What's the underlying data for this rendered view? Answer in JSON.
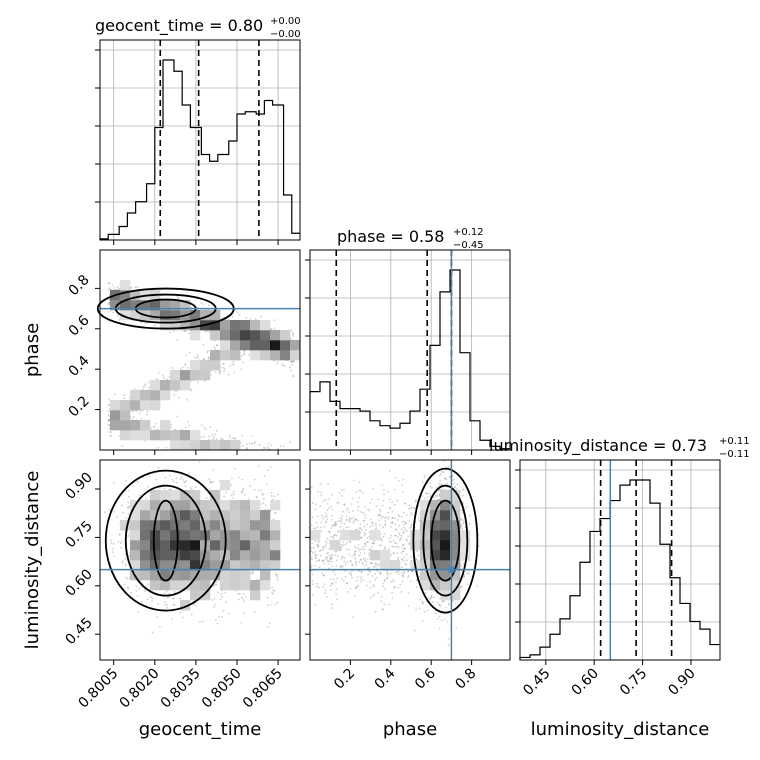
{
  "chart_data": {
    "type": "corner",
    "parameters": [
      "geocent_time",
      "phase",
      "luminosity_distance"
    ],
    "titles": {
      "geocent_time": {
        "name": "geocent_time",
        "value": "0.80",
        "plus": "+0.00",
        "minus": "−0.00"
      },
      "phase": {
        "name": "phase",
        "value": "0.58",
        "plus": "+0.12",
        "minus": "−0.45"
      },
      "luminosity_distance": {
        "name": "luminosity_distance",
        "value": "0.73",
        "plus": "+0.11",
        "minus": "−0.11"
      }
    },
    "axes": {
      "geocent_time": {
        "label": "geocent_time",
        "range": [
          0.8,
          0.8073
        ],
        "ticks": [
          0.8005,
          0.802,
          0.8035,
          0.805,
          0.8065
        ],
        "tick_labels": [
          "0.8005",
          "0.8020",
          "0.8035",
          "0.8050",
          "0.8065"
        ]
      },
      "phase": {
        "label": "phase",
        "range": [
          0.0,
          0.99
        ],
        "ticks": [
          0.2,
          0.4,
          0.6,
          0.8
        ],
        "tick_labels": [
          "0.2",
          "0.4",
          "0.6",
          "0.8"
        ]
      },
      "luminosity_distance": {
        "label": "luminosity_distance",
        "range": [
          0.37,
          0.99
        ],
        "ticks": [
          0.45,
          0.6,
          0.75,
          0.9
        ],
        "tick_labels": [
          "0.45",
          "0.60",
          "0.75",
          "0.90"
        ]
      }
    },
    "truths": {
      "geocent_time": null,
      "phase": 0.7,
      "luminosity_distance": 0.65
    },
    "quantiles": {
      "geocent_time": [
        0.8022,
        0.8036,
        0.8058
      ],
      "phase": [
        0.13,
        0.58,
        0.7
      ],
      "luminosity_distance": [
        0.62,
        0.73,
        0.84
      ]
    },
    "histograms": {
      "geocent_time": {
        "edges": [
          0.8,
          0.8003,
          0.8007,
          0.801,
          0.8013,
          0.8017,
          0.802,
          0.8023,
          0.8027,
          0.803,
          0.8033,
          0.8037,
          0.804,
          0.8043,
          0.8047,
          0.805,
          0.8053,
          0.8057,
          0.806,
          0.8063,
          0.8067,
          0.807,
          0.8073
        ],
        "counts": [
          0.005,
          0.025,
          0.06,
          0.12,
          0.17,
          0.25,
          0.5,
          0.8,
          0.75,
          0.6,
          0.5,
          0.38,
          0.35,
          0.38,
          0.44,
          0.56,
          0.57,
          0.56,
          0.62,
          0.6,
          0.2,
          0.03
        ]
      },
      "phase": {
        "edges": [
          0.0,
          0.0495,
          0.099,
          0.1485,
          0.198,
          0.2475,
          0.297,
          0.3465,
          0.396,
          0.4455,
          0.495,
          0.5445,
          0.594,
          0.6435,
          0.693,
          0.7425,
          0.792,
          0.8415,
          0.891,
          0.9405,
          0.99
        ],
        "counts": [
          0.24,
          0.28,
          0.2,
          0.17,
          0.17,
          0.16,
          0.12,
          0.1,
          0.09,
          0.11,
          0.16,
          0.25,
          0.43,
          0.65,
          0.74,
          0.4,
          0.12,
          0.04,
          0.015,
          0.005
        ]
      },
      "luminosity_distance": {
        "edges": [
          0.37,
          0.401,
          0.432,
          0.463,
          0.494,
          0.525,
          0.556,
          0.587,
          0.618,
          0.649,
          0.68,
          0.711,
          0.742,
          0.773,
          0.804,
          0.835,
          0.866,
          0.897,
          0.928,
          0.959,
          0.99
        ],
        "counts": [
          0.01,
          0.02,
          0.05,
          0.1,
          0.16,
          0.25,
          0.38,
          0.5,
          0.55,
          0.62,
          0.68,
          0.7,
          0.7,
          0.61,
          0.45,
          0.32,
          0.22,
          0.15,
          0.12,
          0.06
        ]
      }
    },
    "grid": true,
    "colors": {
      "truth": "#4682b4",
      "hist": "#000000",
      "density": "#000000",
      "scatter": "#777777"
    }
  }
}
